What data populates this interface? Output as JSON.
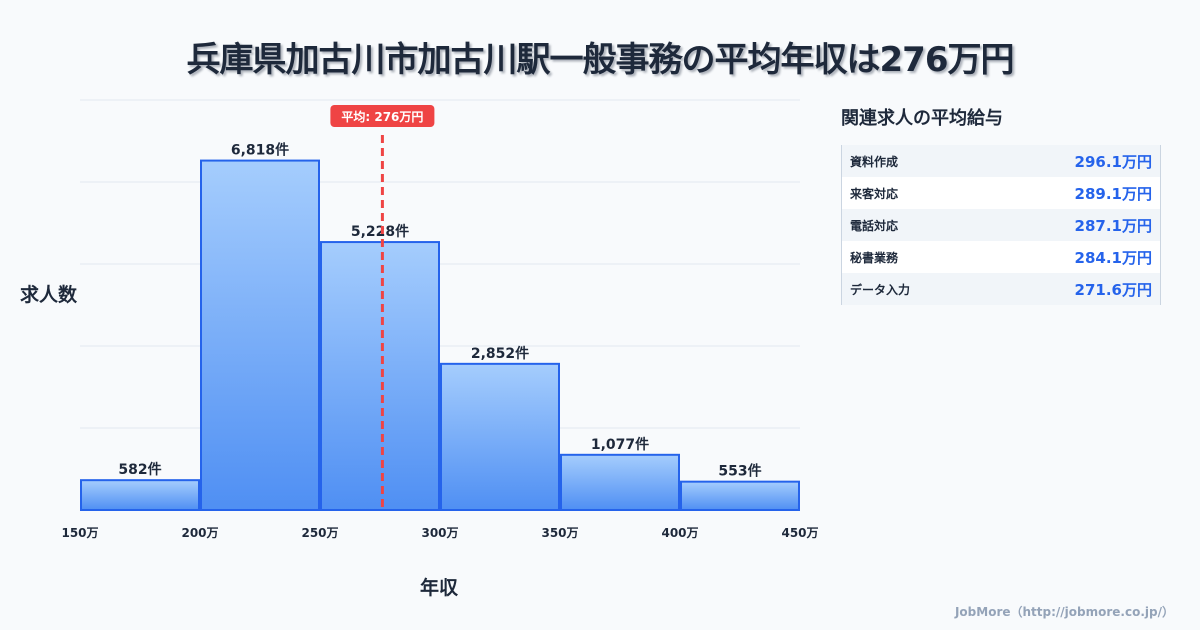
{
  "title": "兵庫県加古川市加古川駅一般事務の平均年収は276万円",
  "chart_data": {
    "type": "bar",
    "title": "兵庫県加古川市加古川駅一般事務の平均年収は276万円",
    "xlabel": "年収",
    "ylabel": "求人数",
    "bin_edges": [
      150,
      200,
      250,
      300,
      350,
      400,
      450
    ],
    "x_tick_labels": [
      "150万",
      "200万",
      "250万",
      "300万",
      "350万",
      "400万",
      "450万"
    ],
    "values": [
      582,
      6818,
      5228,
      2852,
      1077,
      553
    ],
    "value_labels": [
      "582件",
      "6,818件",
      "5,228件",
      "2,852件",
      "1,077件",
      "553件"
    ],
    "xlim": [
      150,
      450
    ],
    "ylim": [
      0,
      8000
    ],
    "grid": true,
    "mean": 276,
    "mean_label": "平均: 276万円",
    "bar_fill": "#60a5fa",
    "bar_stroke": "#2563eb",
    "mean_color": "#ef4444"
  },
  "side": {
    "title": "関連求人の平均給与",
    "rows": [
      {
        "name": "資料作成",
        "value": "296.1万円"
      },
      {
        "name": "来客対応",
        "value": "289.1万円"
      },
      {
        "name": "電話対応",
        "value": "287.1万円"
      },
      {
        "name": "秘書業務",
        "value": "284.1万円"
      },
      {
        "name": "データ入力",
        "value": "271.6万円"
      }
    ]
  },
  "footer": "JobMore（http://jobmore.co.jp/）"
}
